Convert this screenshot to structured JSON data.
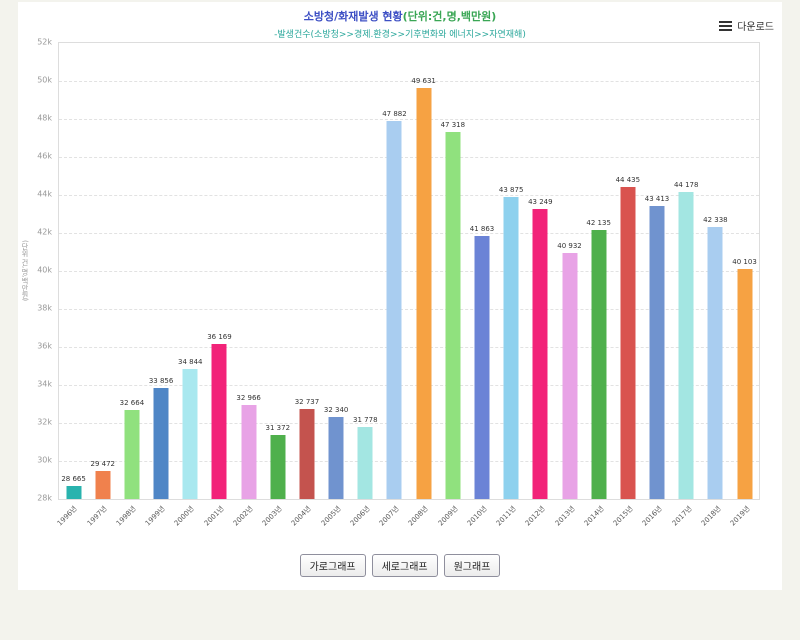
{
  "header": {
    "title_main": "소방청/화재발생 현황",
    "title_unit": "(단위:건,명,백만원)",
    "subtitle": "-발생건수(소방청>>경제.환경>>기후변화와 에너지>>자연재해)",
    "download_label": "다운로드"
  },
  "colors": {
    "title_main": "#3d4fc4",
    "title_unit": "#3aa655",
    "subtitle": "#2aa79b",
    "axis_text": "#999999",
    "value_label": "#333333"
  },
  "chart_data": {
    "type": "bar",
    "title": "소방청/화재발생 현황(단위:건,명,백만원)",
    "subtitle": "-발생건수(소방청>>경제.환경>>기후변화와 에너지>>자연재해)",
    "ylabel": "(단위 건,명,백만원)",
    "xlabel": "",
    "ylim": [
      28000,
      52000
    ],
    "ytick_step": 2000,
    "ytick_format": "k",
    "grid": true,
    "legend": "none",
    "categories": [
      "1996년",
      "1997년",
      "1998년",
      "1999년",
      "2000년",
      "2001년",
      "2002년",
      "2003년",
      "2004년",
      "2005년",
      "2006년",
      "2007년",
      "2008년",
      "2009년",
      "2010년",
      "2011년",
      "2012년",
      "2013년",
      "2014년",
      "2015년",
      "2016년",
      "2017년",
      "2018년",
      "2019년"
    ],
    "values": [
      28665,
      29472,
      32664,
      33856,
      34844,
      36169,
      32966,
      31372,
      32737,
      32340,
      31778,
      47882,
      49631,
      47318,
      41863,
      43875,
      43249,
      40932,
      42135,
      44435,
      43413,
      44178,
      42338,
      40103
    ],
    "bar_colors": [
      "#29b3ae",
      "#f0814d",
      "#90e17e",
      "#4f86c6",
      "#a9e8ef",
      "#f22379",
      "#e8a3e6",
      "#4fb04c",
      "#c4534e",
      "#7093cf",
      "#a3e6e2",
      "#a9cdf0",
      "#f6a243",
      "#90e17e",
      "#6b83d6",
      "#8ed1ee",
      "#f22379",
      "#e8a3e6",
      "#4fb04c",
      "#d9534f",
      "#7093cf",
      "#a3e6e2",
      "#a9cdf0",
      "#f6a243"
    ]
  },
  "footer": {
    "buttons": [
      {
        "label": "가로그래프",
        "name": "horizontal-graph-button"
      },
      {
        "label": "세로그래프",
        "name": "vertical-graph-button"
      },
      {
        "label": "원그래프",
        "name": "pie-graph-button"
      }
    ]
  }
}
